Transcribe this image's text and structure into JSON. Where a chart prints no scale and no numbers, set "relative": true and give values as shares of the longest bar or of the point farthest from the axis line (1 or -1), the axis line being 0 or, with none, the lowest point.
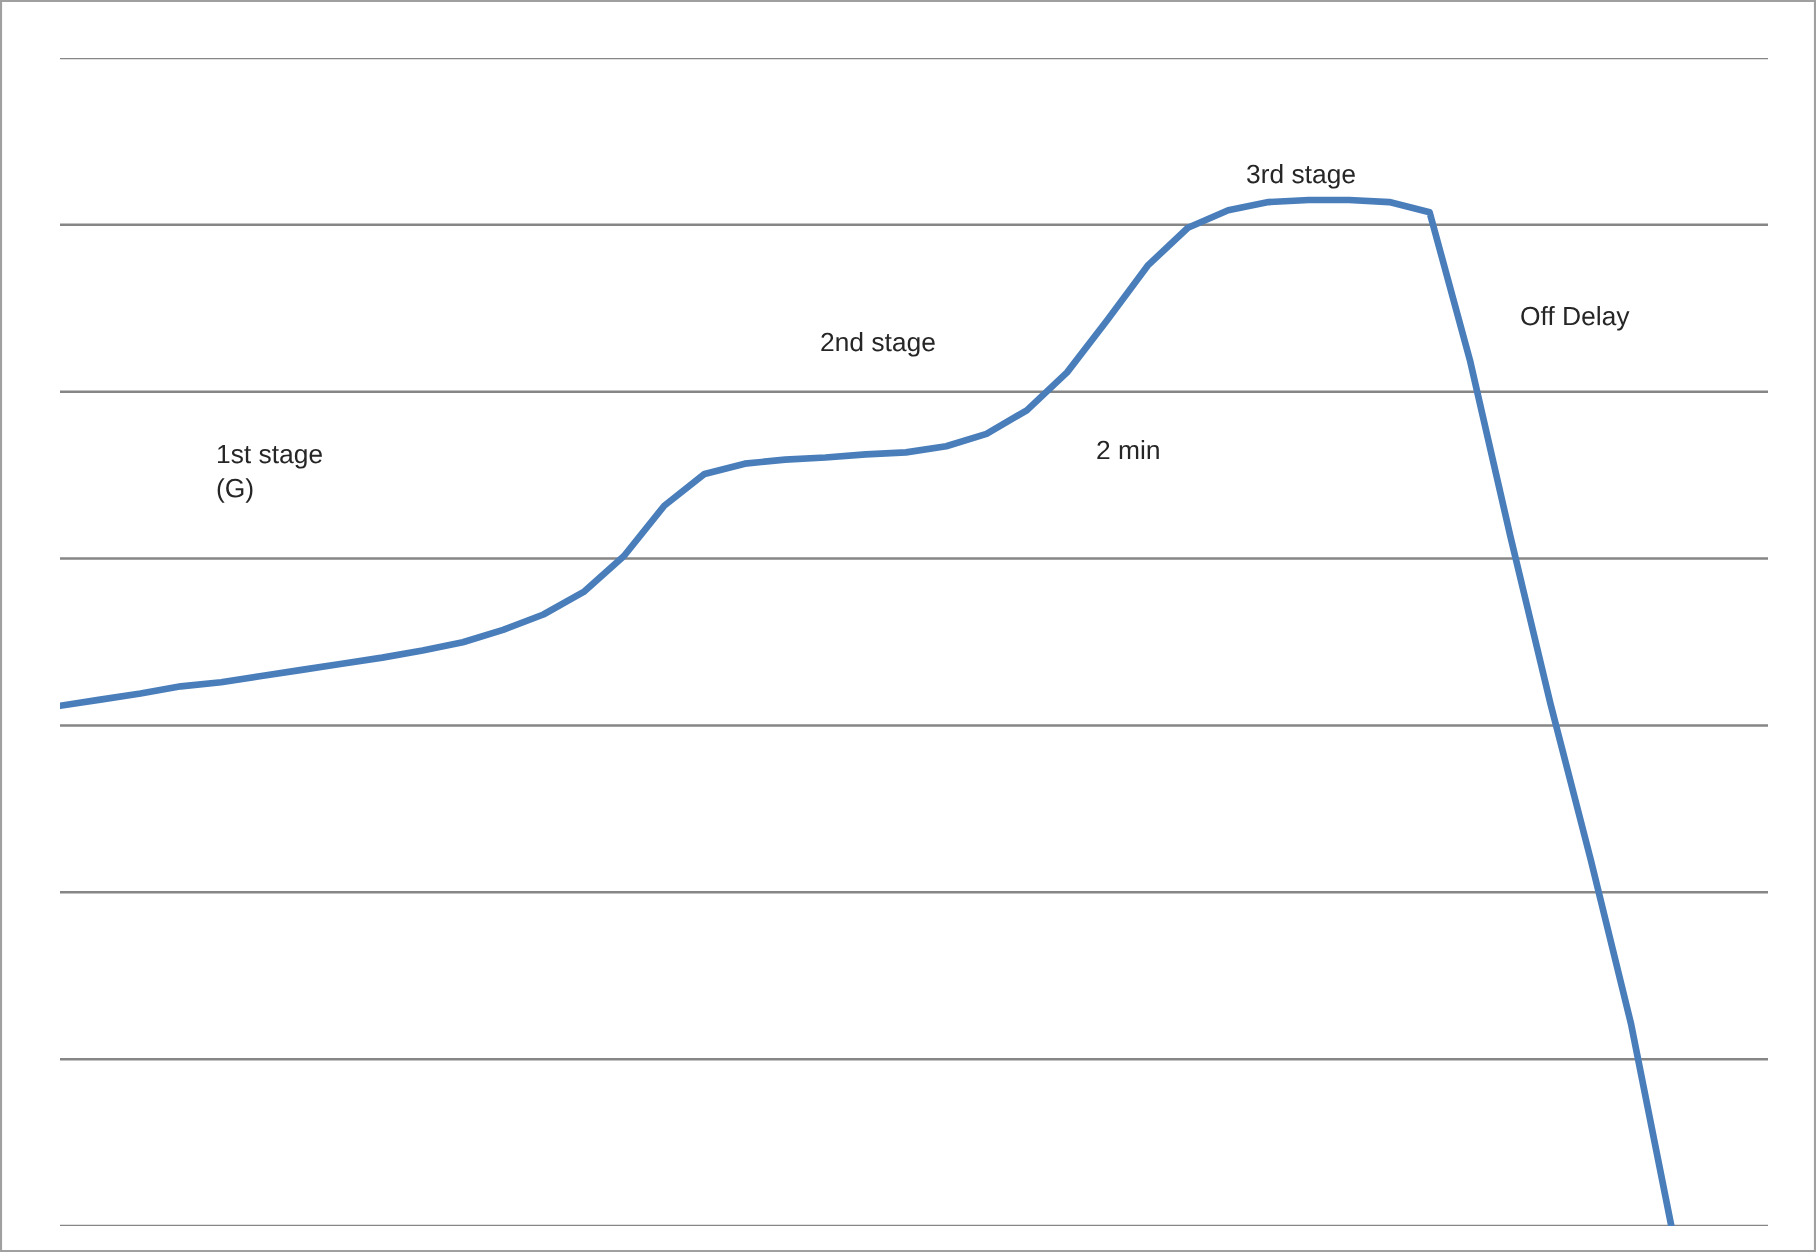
{
  "chart_data": {
    "type": "line",
    "relative": true,
    "grid": "y",
    "legend": false,
    "marker": "none",
    "line_style": "solid",
    "categories": [
      null,
      null,
      null,
      null,
      null,
      null,
      null,
      null,
      null,
      null,
      null,
      null,
      null,
      null,
      null,
      null,
      null,
      null,
      null,
      null,
      null,
      null,
      null,
      null,
      null,
      null,
      null,
      null,
      null,
      null,
      null,
      null,
      null,
      null,
      null,
      null,
      null,
      null,
      null,
      null,
      null
    ],
    "series": [
      {
        "color": "#4a7ebb",
        "values": [
          0.507,
          0.513,
          0.519,
          0.526,
          0.53,
          0.536,
          0.542,
          0.548,
          0.554,
          0.561,
          0.569,
          0.581,
          0.596,
          0.618,
          0.653,
          0.702,
          0.733,
          0.743,
          0.747,
          0.749,
          0.752,
          0.754,
          0.76,
          0.772,
          0.795,
          0.832,
          0.883,
          0.936,
          0.973,
          0.99,
          0.998,
          1,
          1,
          0.998,
          0.988,
          0.844,
          0.673,
          0.509,
          0.357,
          0.197,
          0
        ]
      }
    ],
    "annotations": [
      "1st stage\n(G)",
      "2nd stage",
      "2 min",
      "3rd stage",
      "Off Delay"
    ]
  }
}
